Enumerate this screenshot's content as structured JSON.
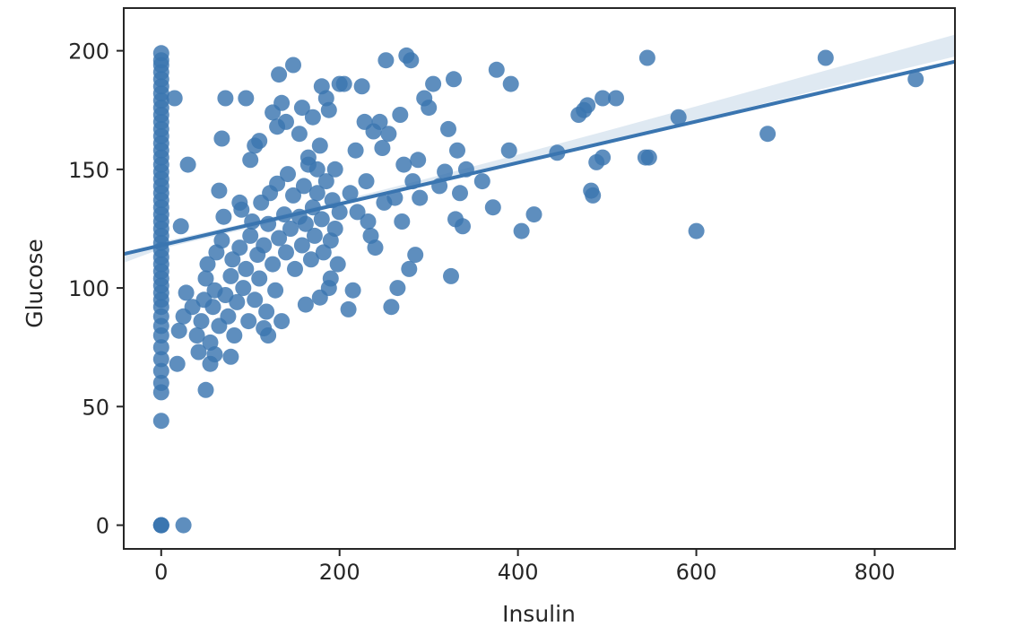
{
  "chart_data": {
    "type": "scatter",
    "xlabel": "Insulin",
    "ylabel": "Glucose",
    "xlim": [
      -42,
      890
    ],
    "ylim": [
      -10,
      218
    ],
    "x_ticks": [
      0,
      200,
      400,
      600,
      800
    ],
    "y_ticks": [
      0,
      50,
      100,
      150,
      200
    ],
    "colors": {
      "points": "#3a75b0",
      "line": "#3a75b0",
      "band": "#3a75b0"
    },
    "regression": {
      "intercept": 118.0,
      "slope": 0.087,
      "x_range": [
        -42,
        890
      ]
    },
    "band": {
      "x": [
        -42,
        0,
        100,
        200,
        300,
        400,
        500,
        600,
        700,
        800,
        890
      ],
      "upper": [
        113.8,
        119.4,
        127.7,
        136.7,
        146.3,
        156.2,
        166.3,
        176.6,
        187.0,
        197.4,
        206.8
      ],
      "lower": [
        110.6,
        116.6,
        125.3,
        134.7,
        143.7,
        152.6,
        161.7,
        170.8,
        180.0,
        189.4,
        197.6
      ]
    },
    "points": [
      [
        0,
        0
      ],
      [
        0,
        0
      ],
      [
        0,
        0
      ],
      [
        25,
        0
      ],
      [
        0,
        44
      ],
      [
        0,
        56
      ],
      [
        0,
        60
      ],
      [
        0,
        65
      ],
      [
        0,
        70
      ],
      [
        0,
        75
      ],
      [
        0,
        80
      ],
      [
        0,
        84
      ],
      [
        0,
        88
      ],
      [
        0,
        92
      ],
      [
        0,
        95
      ],
      [
        0,
        98
      ],
      [
        0,
        101
      ],
      [
        0,
        104
      ],
      [
        0,
        107
      ],
      [
        0,
        110
      ],
      [
        0,
        113
      ],
      [
        0,
        116
      ],
      [
        0,
        119
      ],
      [
        0,
        122
      ],
      [
        0,
        125
      ],
      [
        0,
        128
      ],
      [
        0,
        131
      ],
      [
        0,
        134
      ],
      [
        0,
        137
      ],
      [
        0,
        140
      ],
      [
        0,
        143
      ],
      [
        0,
        146
      ],
      [
        0,
        149
      ],
      [
        0,
        152
      ],
      [
        0,
        155
      ],
      [
        0,
        158
      ],
      [
        0,
        161
      ],
      [
        0,
        164
      ],
      [
        0,
        167
      ],
      [
        0,
        170
      ],
      [
        0,
        173
      ],
      [
        0,
        176
      ],
      [
        0,
        179
      ],
      [
        0,
        182
      ],
      [
        0,
        185
      ],
      [
        0,
        188
      ],
      [
        0,
        191
      ],
      [
        0,
        194
      ],
      [
        0,
        196
      ],
      [
        0,
        199
      ],
      [
        15,
        180
      ],
      [
        22,
        126
      ],
      [
        30,
        152
      ],
      [
        18,
        68
      ],
      [
        20,
        82
      ],
      [
        25,
        88
      ],
      [
        28,
        98
      ],
      [
        35,
        92
      ],
      [
        40,
        80
      ],
      [
        42,
        73
      ],
      [
        45,
        86
      ],
      [
        48,
        95
      ],
      [
        50,
        104
      ],
      [
        52,
        110
      ],
      [
        55,
        77
      ],
      [
        58,
        92
      ],
      [
        60,
        99
      ],
      [
        62,
        115
      ],
      [
        65,
        84
      ],
      [
        68,
        120
      ],
      [
        70,
        130
      ],
      [
        72,
        97
      ],
      [
        75,
        88
      ],
      [
        78,
        105
      ],
      [
        80,
        112
      ],
      [
        82,
        80
      ],
      [
        85,
        94
      ],
      [
        88,
        117
      ],
      [
        90,
        133
      ],
      [
        92,
        100
      ],
      [
        95,
        108
      ],
      [
        98,
        86
      ],
      [
        100,
        122
      ],
      [
        102,
        128
      ],
      [
        105,
        95
      ],
      [
        108,
        114
      ],
      [
        110,
        104
      ],
      [
        112,
        136
      ],
      [
        115,
        118
      ],
      [
        118,
        90
      ],
      [
        120,
        127
      ],
      [
        122,
        140
      ],
      [
        125,
        110
      ],
      [
        128,
        99
      ],
      [
        130,
        144
      ],
      [
        132,
        121
      ],
      [
        135,
        86
      ],
      [
        138,
        131
      ],
      [
        140,
        115
      ],
      [
        142,
        148
      ],
      [
        145,
        125
      ],
      [
        148,
        139
      ],
      [
        150,
        108
      ],
      [
        155,
        130
      ],
      [
        158,
        118
      ],
      [
        160,
        143
      ],
      [
        162,
        127
      ],
      [
        165,
        152
      ],
      [
        168,
        112
      ],
      [
        170,
        134
      ],
      [
        172,
        122
      ],
      [
        175,
        140
      ],
      [
        178,
        160
      ],
      [
        180,
        129
      ],
      [
        182,
        115
      ],
      [
        185,
        145
      ],
      [
        188,
        100
      ],
      [
        190,
        120
      ],
      [
        192,
        137
      ],
      [
        195,
        125
      ],
      [
        198,
        110
      ],
      [
        200,
        132
      ],
      [
        50,
        57
      ],
      [
        55,
        68
      ],
      [
        60,
        72
      ],
      [
        65,
        141
      ],
      [
        68,
        163
      ],
      [
        72,
        180
      ],
      [
        78,
        71
      ],
      [
        88,
        136
      ],
      [
        95,
        180
      ],
      [
        100,
        154
      ],
      [
        105,
        160
      ],
      [
        110,
        162
      ],
      [
        115,
        83
      ],
      [
        120,
        80
      ],
      [
        125,
        174
      ],
      [
        130,
        168
      ],
      [
        132,
        190
      ],
      [
        135,
        178
      ],
      [
        140,
        170
      ],
      [
        148,
        194
      ],
      [
        155,
        165
      ],
      [
        158,
        176
      ],
      [
        162,
        93
      ],
      [
        165,
        155
      ],
      [
        170,
        172
      ],
      [
        175,
        150
      ],
      [
        178,
        96
      ],
      [
        180,
        185
      ],
      [
        185,
        180
      ],
      [
        188,
        175
      ],
      [
        190,
        104
      ],
      [
        195,
        150
      ],
      [
        200,
        186
      ],
      [
        205,
        186
      ],
      [
        210,
        91
      ],
      [
        212,
        140
      ],
      [
        215,
        99
      ],
      [
        218,
        158
      ],
      [
        220,
        132
      ],
      [
        225,
        185
      ],
      [
        228,
        170
      ],
      [
        230,
        145
      ],
      [
        232,
        128
      ],
      [
        235,
        122
      ],
      [
        238,
        166
      ],
      [
        240,
        117
      ],
      [
        245,
        170
      ],
      [
        248,
        159
      ],
      [
        250,
        136
      ],
      [
        252,
        196
      ],
      [
        255,
        165
      ],
      [
        258,
        92
      ],
      [
        262,
        138
      ],
      [
        265,
        100
      ],
      [
        268,
        173
      ],
      [
        270,
        128
      ],
      [
        272,
        152
      ],
      [
        275,
        198
      ],
      [
        278,
        108
      ],
      [
        280,
        196
      ],
      [
        282,
        145
      ],
      [
        285,
        114
      ],
      [
        288,
        154
      ],
      [
        290,
        138
      ],
      [
        295,
        180
      ],
      [
        300,
        176
      ],
      [
        305,
        186
      ],
      [
        312,
        143
      ],
      [
        318,
        149
      ],
      [
        322,
        167
      ],
      [
        325,
        105
      ],
      [
        328,
        188
      ],
      [
        330,
        129
      ],
      [
        332,
        158
      ],
      [
        335,
        140
      ],
      [
        338,
        126
      ],
      [
        342,
        150
      ],
      [
        360,
        145
      ],
      [
        372,
        134
      ],
      [
        376,
        192
      ],
      [
        392,
        186
      ],
      [
        390,
        158
      ],
      [
        404,
        124
      ],
      [
        418,
        131
      ],
      [
        444,
        157
      ],
      [
        468,
        173
      ],
      [
        474,
        175
      ],
      [
        478,
        177
      ],
      [
        482,
        141
      ],
      [
        484,
        139
      ],
      [
        488,
        153
      ],
      [
        495,
        155
      ],
      [
        495,
        180
      ],
      [
        510,
        180
      ],
      [
        543,
        155
      ],
      [
        545,
        197
      ],
      [
        547,
        155
      ],
      [
        580,
        172
      ],
      [
        600,
        124
      ],
      [
        680,
        165
      ],
      [
        745,
        197
      ],
      [
        846,
        188
      ]
    ]
  }
}
